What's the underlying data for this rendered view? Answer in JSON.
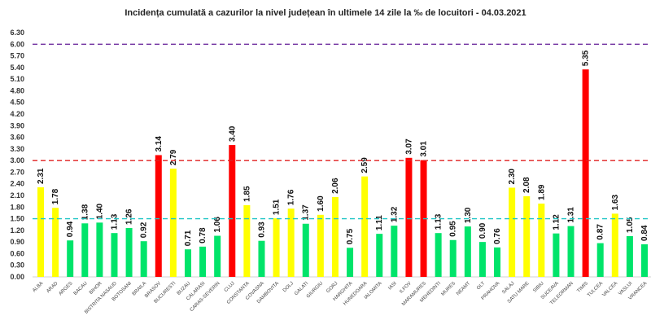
{
  "chart_data": {
    "type": "bar",
    "title": "Incidența cumulată a cazurilor la nivel județean în ultimele 14 zile la ‰ de locuitori - 04.03.2021",
    "xlabel": "",
    "ylabel": "",
    "ylim": [
      0,
      6.3
    ],
    "yticks": [
      "0.00",
      "0.30",
      "0.60",
      "0.90",
      "1.20",
      "1.50",
      "1.80",
      "2.10",
      "2.40",
      "2.70",
      "3.00",
      "3.30",
      "3.60",
      "3.90",
      "4.20",
      "4.50",
      "4.80",
      "5.10",
      "5.40",
      "5.70",
      "6.00",
      "6.30"
    ],
    "grid": false,
    "categories": [
      "ALBA",
      "ARAD",
      "ARGES",
      "BACAU",
      "BIHOR",
      "BISTRITA NASAUD",
      "BOTOSANI",
      "BRAILA",
      "BRASOV",
      "BUCURESTI",
      "BUZAU",
      "CALARASI",
      "CARAS-SEVERIN",
      "CLUJ",
      "CONSTANTA",
      "COVASNA",
      "DAMBOVITA",
      "DOLJ",
      "GALATI",
      "GIURGIU",
      "GORJ",
      "HARGHITA",
      "HUNEDOARA",
      "IALOMITA",
      "IASI",
      "ILFOV",
      "MARAMURES",
      "MEHEDINTI",
      "MURES",
      "NEAMT",
      "OLT",
      "PRAHOVA",
      "SALAJ",
      "SATU MARE",
      "SIBIU",
      "SUCEAVA",
      "TELEORMAN",
      "TIMIS",
      "TULCEA",
      "VALCEA",
      "VASLUI",
      "VRANCEA"
    ],
    "values": [
      2.31,
      1.78,
      0.94,
      1.38,
      1.4,
      1.13,
      1.26,
      0.92,
      3.14,
      2.79,
      0.71,
      0.78,
      1.06,
      3.4,
      1.85,
      0.93,
      1.51,
      1.76,
      1.37,
      1.6,
      2.06,
      0.75,
      2.59,
      1.11,
      1.32,
      3.07,
      3.01,
      1.13,
      0.95,
      1.3,
      0.9,
      0.76,
      2.3,
      2.08,
      1.89,
      1.12,
      1.31,
      5.35,
      0.87,
      1.63,
      1.05,
      0.84
    ],
    "thresholds": [
      {
        "value": 1.5,
        "color": "#1fc6c6"
      },
      {
        "value": 3.0,
        "color": "#e02020"
      },
      {
        "value": 6.0,
        "color": "#7030a0"
      }
    ],
    "colors": {
      "low": "#00e46a",
      "mid": "#ffff00",
      "high": "#ff0000"
    }
  }
}
